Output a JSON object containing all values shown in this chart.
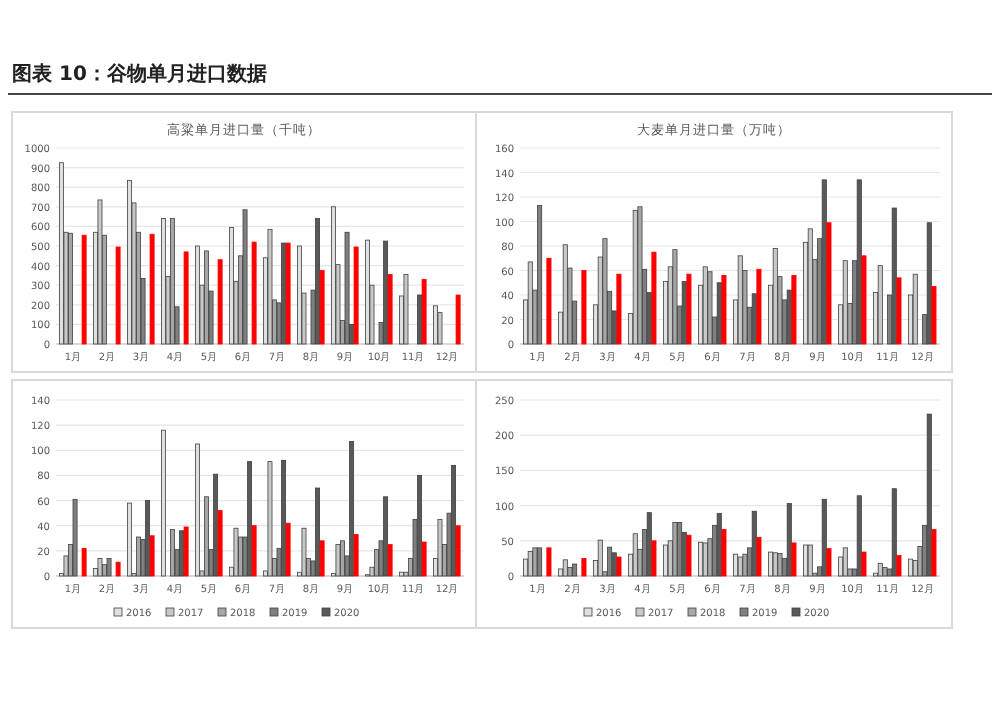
{
  "chart_data": [
    {
      "type": "bar",
      "title": "高粱单月进口量（千吨）",
      "annotations": [
        "图表 10：谷物单月进口数据"
      ],
      "categories": [
        "1月",
        "2月",
        "3月",
        "4月",
        "5月",
        "6月",
        "7月",
        "8月",
        "9月",
        "10月",
        "11月",
        "12月"
      ],
      "ylim": [
        0,
        1000
      ],
      "yticks": [
        0,
        100,
        200,
        300,
        400,
        500,
        600,
        700,
        800,
        900,
        1000
      ],
      "grid": "y",
      "legend": false,
      "series": [
        {
          "color": "#e0e0e0",
          "values": [
            925,
            570,
            835,
            640,
            500,
            595,
            440,
            500,
            700,
            530,
            245,
            195
          ]
        },
        {
          "color": "#c8c8c8",
          "values": [
            570,
            735,
            720,
            345,
            300,
            320,
            585,
            260,
            405,
            300,
            355,
            160
          ]
        },
        {
          "color": "#a6a6a6",
          "values": [
            565,
            555,
            570,
            640,
            475,
            450,
            225,
            null,
            120,
            null,
            null,
            null
          ]
        },
        {
          "color": "#808080",
          "values": [
            null,
            null,
            335,
            190,
            270,
            685,
            210,
            275,
            570,
            110,
            null,
            null
          ]
        },
        {
          "color": "#595959",
          "values": [
            null,
            null,
            null,
            null,
            null,
            null,
            515,
            640,
            100,
            525,
            250,
            null
          ]
        },
        {
          "color": "#ff0000",
          "values": [
            555,
            495,
            560,
            470,
            430,
            520,
            515,
            375,
            495,
            355,
            330,
            250
          ]
        }
      ]
    },
    {
      "type": "bar",
      "title": "大麦单月进口量（万吨）",
      "categories": [
        "1月",
        "2月",
        "3月",
        "4月",
        "5月",
        "6月",
        "7月",
        "8月",
        "9月",
        "10月",
        "11月",
        "12月"
      ],
      "ylim": [
        0,
        160
      ],
      "yticks": [
        0,
        20,
        40,
        60,
        80,
        100,
        120,
        140,
        160
      ],
      "grid": "y",
      "legend": false,
      "series": [
        {
          "color": "#e0e0e0",
          "values": [
            36,
            26,
            32,
            25,
            51,
            48,
            36,
            48,
            83,
            32,
            42,
            40
          ]
        },
        {
          "color": "#c8c8c8",
          "values": [
            67,
            81,
            71,
            109,
            63,
            63,
            72,
            78,
            94,
            68,
            64,
            57
          ]
        },
        {
          "color": "#a6a6a6",
          "values": [
            44,
            62,
            86,
            112,
            77,
            59,
            60,
            55,
            69,
            33,
            null,
            null
          ]
        },
        {
          "color": "#808080",
          "values": [
            113,
            35,
            43,
            61,
            31,
            22,
            30,
            36,
            86,
            68,
            40,
            24
          ]
        },
        {
          "color": "#595959",
          "values": [
            null,
            null,
            27,
            42,
            51,
            50,
            41,
            44,
            134,
            134,
            111,
            99
          ]
        },
        {
          "color": "#ff0000",
          "values": [
            70,
            60,
            57,
            75,
            57,
            56,
            61,
            56,
            99,
            72,
            54,
            47
          ]
        }
      ]
    },
    {
      "type": "bar",
      "categories": [
        "1月",
        "2月",
        "3月",
        "4月",
        "5月",
        "6月",
        "7月",
        "8月",
        "9月",
        "10月",
        "11月",
        "12月"
      ],
      "ylim": [
        0,
        140
      ],
      "yticks": [
        0,
        20,
        40,
        60,
        80,
        100,
        120,
        140
      ],
      "grid": "y",
      "legend": "bottom",
      "series": [
        {
          "name": "2016",
          "color": "#e0e0e0",
          "values": [
            2,
            6,
            58,
            116,
            105,
            7,
            4,
            3,
            2,
            1,
            3,
            14
          ]
        },
        {
          "name": "2017",
          "color": "#c8c8c8",
          "values": [
            16,
            14,
            2,
            null,
            4,
            38,
            91,
            38,
            25,
            7,
            3,
            45
          ]
        },
        {
          "name": "2018",
          "color": "#a6a6a6",
          "values": [
            25,
            9,
            31,
            37,
            63,
            31,
            14,
            14,
            28,
            21,
            14,
            25
          ]
        },
        {
          "name": "2019",
          "color": "#808080",
          "values": [
            61,
            14,
            29,
            21,
            21,
            31,
            22,
            12,
            16,
            28,
            45,
            50
          ]
        },
        {
          "name": "2020",
          "color": "#595959",
          "values": [
            null,
            null,
            60,
            36,
            81,
            91,
            92,
            70,
            107,
            63,
            80,
            88
          ]
        },
        {
          "color": "#ff0000",
          "values": [
            22,
            11,
            32,
            39,
            52,
            40,
            42,
            28,
            33,
            25,
            27,
            40
          ]
        }
      ]
    },
    {
      "type": "bar",
      "categories": [
        "1月",
        "2月",
        "3月",
        "4月",
        "5月",
        "6月",
        "7月",
        "8月",
        "9月",
        "10月",
        "11月",
        "12月"
      ],
      "ylim": [
        0,
        250
      ],
      "yticks": [
        0,
        50,
        100,
        150,
        200,
        250
      ],
      "grid": "y",
      "legend": "bottom",
      "series": [
        {
          "name": "2016",
          "color": "#e0e0e0",
          "values": [
            24,
            10,
            22,
            31,
            44,
            48,
            31,
            34,
            44,
            27,
            4,
            24
          ]
        },
        {
          "name": "2017",
          "color": "#c8c8c8",
          "values": [
            35,
            23,
            51,
            60,
            50,
            47,
            27,
            33,
            44,
            40,
            18,
            22
          ]
        },
        {
          "name": "2018",
          "color": "#a6a6a6",
          "values": [
            40,
            12,
            6,
            38,
            76,
            53,
            31,
            32,
            4,
            10,
            12,
            42
          ]
        },
        {
          "name": "2019",
          "color": "#808080",
          "values": [
            40,
            17,
            41,
            66,
            76,
            72,
            40,
            25,
            13,
            10,
            10,
            72
          ]
        },
        {
          "name": "2020",
          "color": "#595959",
          "values": [
            null,
            null,
            33,
            90,
            62,
            89,
            92,
            103,
            109,
            114,
            124,
            230
          ]
        },
        {
          "color": "#ff0000",
          "values": [
            40,
            25,
            27,
            50,
            58,
            66,
            55,
            47,
            39,
            34,
            29,
            66
          ]
        }
      ]
    }
  ]
}
